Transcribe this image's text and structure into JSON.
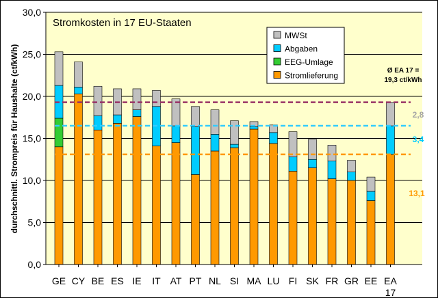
{
  "chart_data": {
    "type": "bar",
    "stacked": true,
    "title": "Stromkosten in 17 EU-Staaten",
    "ylabel": "durchschnittl. Strompreis für Haushalte (ct/kWh)",
    "xlabel": "",
    "ylim": [
      0,
      30
    ],
    "yticks": [
      "0,0",
      "5,0",
      "10,0",
      "15,0",
      "20,0",
      "25,0",
      "30,0"
    ],
    "ytick_values": [
      0,
      5,
      10,
      15,
      20,
      25,
      30
    ],
    "grid": true,
    "legend_position": "top-right",
    "categories": [
      "GE",
      "CY",
      "BE",
      "ES",
      "IE",
      "IT",
      "AT",
      "PT",
      "NL",
      "SI",
      "MA",
      "LU",
      "FI",
      "SK",
      "FR",
      "GR",
      "EE",
      "EA 17"
    ],
    "series": [
      {
        "name": "Stromlieferung",
        "color": "#ff9900",
        "values": [
          14.0,
          20.3,
          16.0,
          16.8,
          17.6,
          14.1,
          14.5,
          10.7,
          13.5,
          13.9,
          16.1,
          14.4,
          11.1,
          11.5,
          10.2,
          10.0,
          7.6,
          13.1
        ]
      },
      {
        "name": "EEG-Umlage",
        "color": "#33cc33",
        "values": [
          3.4,
          0,
          0,
          0,
          0,
          0,
          0,
          0,
          0,
          0,
          0,
          0,
          0,
          0,
          0,
          0,
          0,
          0
        ]
      },
      {
        "name": "Abgaben",
        "color": "#00ccff",
        "values": [
          3.9,
          0.8,
          1.7,
          1.0,
          0.8,
          4.7,
          2.0,
          5.7,
          2.0,
          0.4,
          0.3,
          1.3,
          1.7,
          1.0,
          2.1,
          1.0,
          1.1,
          3.4
        ]
      },
      {
        "name": "MWSt",
        "color": "#c0c0c0",
        "values": [
          4.0,
          3.0,
          3.5,
          3.1,
          2.5,
          1.9,
          3.2,
          2.4,
          2.9,
          2.8,
          0.6,
          0.9,
          3.0,
          2.4,
          1.9,
          1.4,
          1.7,
          2.8
        ]
      }
    ],
    "reference_lines": [
      {
        "value": 19.3,
        "color": "#993366"
      },
      {
        "value": 16.5,
        "color": "#33ccff"
      },
      {
        "value": 13.1,
        "color": "#ff9900"
      }
    ],
    "annotations": {
      "ea_total_line1": "Ø  EA 17 =",
      "ea_total_line2": "19,3 ct/kWh",
      "mwst_value": "2,8",
      "abgaben_value": "3,4",
      "strom_value": "13,1"
    }
  }
}
